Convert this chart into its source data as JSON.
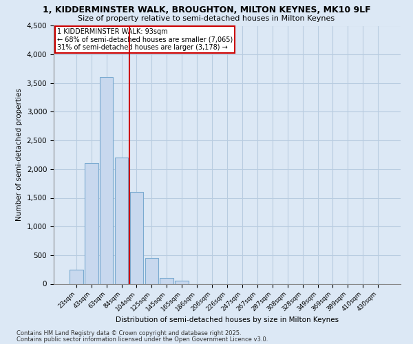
{
  "title_line1": "1, KIDDERMINSTER WALK, BROUGHTON, MILTON KEYNES, MK10 9LF",
  "title_line2": "Size of property relative to semi-detached houses in Milton Keynes",
  "xlabel": "Distribution of semi-detached houses by size in Milton Keynes",
  "ylabel": "Number of semi-detached properties",
  "footnote1": "Contains HM Land Registry data © Crown copyright and database right 2025.",
  "footnote2": "Contains public sector information licensed under the Open Government Licence v3.0.",
  "annotation_title": "1 KIDDERMINSTER WALK: 93sqm",
  "annotation_line1": "← 68% of semi-detached houses are smaller (7,065)",
  "annotation_line2": "31% of semi-detached houses are larger (3,178) →",
  "categories": [
    "23sqm",
    "43sqm",
    "63sqm",
    "84sqm",
    "104sqm",
    "125sqm",
    "145sqm",
    "165sqm",
    "186sqm",
    "206sqm",
    "226sqm",
    "247sqm",
    "267sqm",
    "287sqm",
    "308sqm",
    "328sqm",
    "349sqm",
    "369sqm",
    "389sqm",
    "410sqm",
    "430sqm"
  ],
  "values": [
    250,
    2100,
    3600,
    2200,
    1600,
    450,
    100,
    50,
    0,
    0,
    0,
    0,
    0,
    0,
    0,
    0,
    0,
    0,
    0,
    0,
    0
  ],
  "bar_facecolor": "#c8d8ee",
  "bar_edgecolor": "#7aaad0",
  "vline_color": "#cc0000",
  "vline_x": 3.5,
  "annotation_box_edgecolor": "#cc0000",
  "ylim": [
    0,
    4500
  ],
  "yticks": [
    0,
    500,
    1000,
    1500,
    2000,
    2500,
    3000,
    3500,
    4000,
    4500
  ],
  "background_color": "#dce8f5",
  "plot_bg_color": "#dce8f5",
  "grid_color": "#b8cce0",
  "title_fontsize": 9,
  "subtitle_fontsize": 8
}
